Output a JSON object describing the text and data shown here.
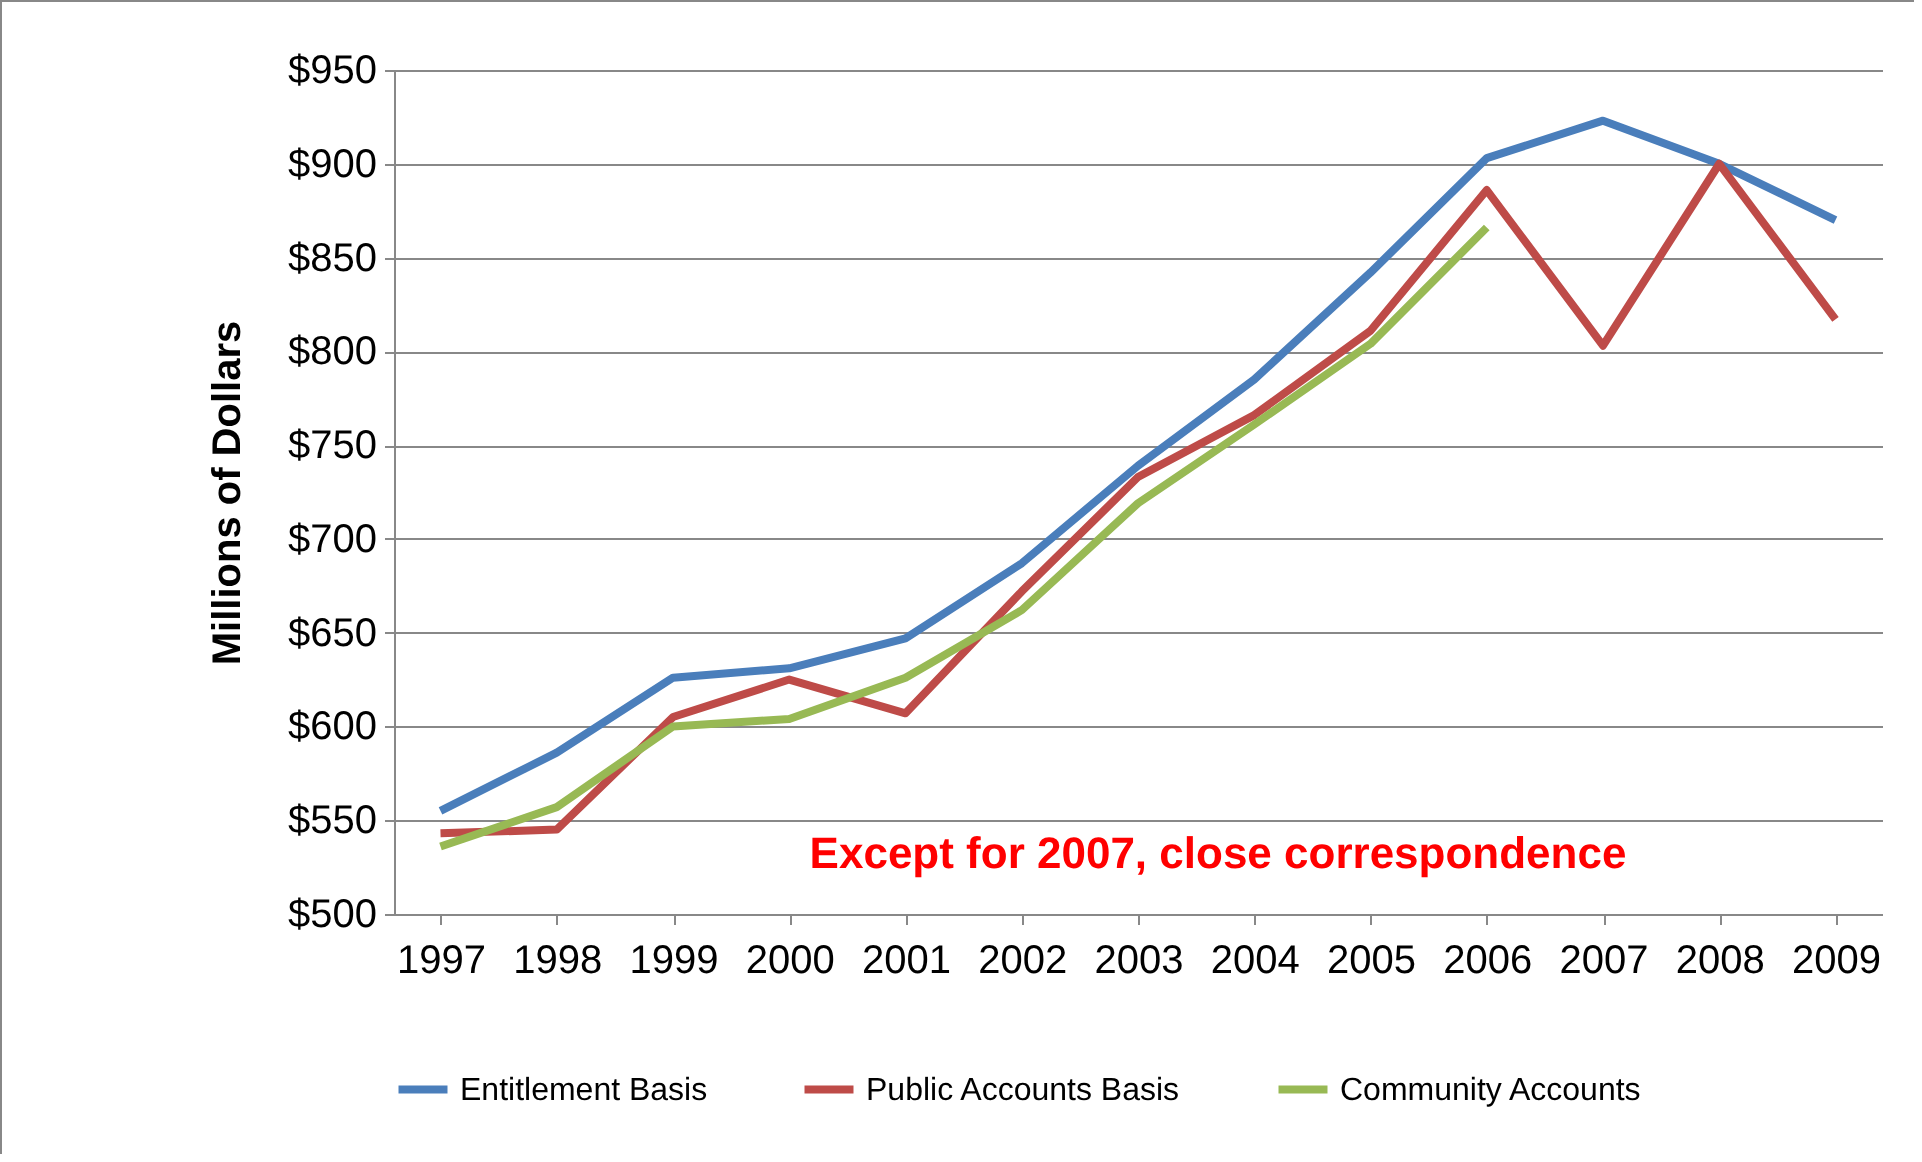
{
  "chart_data": {
    "type": "line",
    "ylabel": "Millions of Dollars",
    "categories": [
      "1997",
      "1998",
      "1999",
      "2000",
      "2001",
      "2002",
      "2003",
      "2004",
      "2005",
      "2006",
      "2007",
      "2008",
      "2009"
    ],
    "series": [
      {
        "name": "Entitlement Basis",
        "color": "#4a7ebb",
        "values": [
          555,
          586,
          626,
          631,
          647,
          687,
          739,
          785,
          842,
          903,
          923,
          900,
          870
        ]
      },
      {
        "name": "Public Accounts Basis",
        "color": "#be4b48",
        "values": [
          543,
          545,
          605,
          625,
          607,
          672,
          733,
          766,
          811,
          886,
          803,
          900,
          817
        ]
      },
      {
        "name": "Community Accounts",
        "color": "#98b954",
        "values": [
          536,
          557,
          600,
          604,
          626,
          662,
          719,
          761,
          804,
          866,
          null,
          null,
          null
        ]
      }
    ],
    "ylim": [
      500,
      950
    ],
    "yticks": [
      {
        "value": 500,
        "label": "$500"
      },
      {
        "value": 550,
        "label": "$550"
      },
      {
        "value": 600,
        "label": "$600"
      },
      {
        "value": 650,
        "label": "$650"
      },
      {
        "value": 700,
        "label": "$700"
      },
      {
        "value": 750,
        "label": "$750"
      },
      {
        "value": 800,
        "label": "$800"
      },
      {
        "value": 850,
        "label": "$850"
      },
      {
        "value": 900,
        "label": "$900"
      },
      {
        "value": 950,
        "label": "$950"
      }
    ],
    "grid": "y",
    "legend": "bottom",
    "marker": "none",
    "line_style": "solid",
    "annotations": [
      "Except for 2007, close correspondence"
    ]
  }
}
